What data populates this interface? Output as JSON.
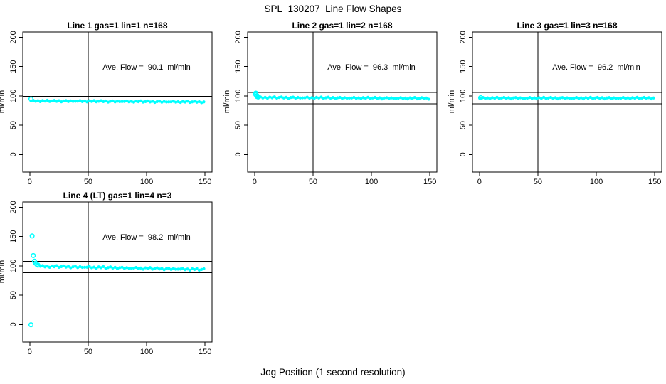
{
  "page": {
    "title": "SPL_130207  Line Flow Shapes",
    "xlabel": "Jog Position (1 second resolution)"
  },
  "colors": {
    "points": "#00ffff",
    "axis": "#000000",
    "background": "#ffffff"
  },
  "chart_data": [
    {
      "type": "scatter",
      "title": "Line 1 gas=1 lin=1 n=168",
      "annotation": "Ave. Flow =  90.1  ml/min",
      "ave_flow_ml_min": 90.1,
      "ylabel": "ml/min",
      "xticks": [
        0,
        50,
        100,
        150
      ],
      "yticks": [
        0,
        50,
        100,
        150,
        200
      ],
      "xlim": [
        -6,
        156
      ],
      "ylim": [
        -30,
        209
      ],
      "hlines": [
        99.1,
        81.1
      ],
      "vline": 50,
      "series": {
        "x_start": 1,
        "x_step": 2,
        "y": [
          91.5,
          92.4,
          90.8,
          91.8,
          90.3,
          92.1,
          91.1,
          92.5,
          90.5,
          91.4,
          92.3,
          90.7,
          91.8,
          90.0,
          91.4,
          92.0,
          90.4,
          91.5,
          90.7,
          90.9,
          91.0,
          91.9,
          90.3,
          91.3,
          89.8,
          91.6,
          90.6,
          92.0,
          89.9,
          90.9,
          91.8,
          90.2,
          91.3,
          89.4,
          90.9,
          91.4,
          89.8,
          91.0,
          90.2,
          90.4,
          90.5,
          91.4,
          89.8,
          90.7,
          89.3,
          91.1,
          90.1,
          91.5,
          89.4,
          90.3,
          91.3,
          89.7,
          90.8,
          88.9,
          90.3,
          90.9,
          89.3,
          90.5,
          89.6,
          89.8,
          89.9,
          90.9,
          89.3,
          90.2,
          88.8,
          90.5,
          89.5,
          91.0,
          88.9,
          89.8,
          90.8,
          89.2,
          90.2,
          88.4,
          89.8
        ]
      },
      "outlier_points": [
        [
          1,
          94.8
        ]
      ]
    },
    {
      "type": "scatter",
      "title": "Line 2 gas=1 lin=2 n=168",
      "annotation": "Ave. Flow =  96.3  ml/min",
      "ave_flow_ml_min": 96.3,
      "ylabel": "ml/min",
      "xticks": [
        0,
        50,
        100,
        150
      ],
      "yticks": [
        0,
        50,
        100,
        150,
        200
      ],
      "xlim": [
        -6,
        156
      ],
      "ylim": [
        -30,
        209
      ],
      "hlines": [
        105.9,
        86.7
      ],
      "vline": 50,
      "series": {
        "x_start": 3,
        "x_step": 2,
        "y": [
          97.2,
          98.2,
          96.5,
          97.5,
          96.0,
          97.9,
          96.8,
          98.4,
          96.1,
          97.2,
          98.2,
          96.5,
          97.6,
          95.6,
          97.2,
          97.8,
          96.1,
          97.4,
          96.5,
          96.7,
          96.8,
          97.8,
          96.1,
          97.1,
          95.6,
          97.5,
          96.4,
          98.0,
          95.7,
          96.8,
          97.8,
          96.1,
          97.2,
          95.2,
          96.8,
          97.4,
          95.7,
          97.0,
          96.1,
          96.3,
          96.4,
          97.4,
          95.7,
          96.7,
          95.2,
          97.1,
          96.0,
          97.6,
          95.3,
          96.4,
          97.4,
          95.7,
          96.8,
          94.8,
          96.4,
          97.0,
          95.3,
          96.6,
          95.7,
          95.9,
          96.0,
          97.0,
          95.3,
          96.3,
          94.8,
          96.7,
          95.6,
          97.2,
          94.9,
          96.0,
          97.0,
          95.3,
          96.4,
          94.4
        ]
      },
      "outlier_points": [
        [
          1,
          104.6
        ],
        [
          1,
          102.2
        ],
        [
          2,
          100.4
        ],
        [
          2,
          98.9
        ],
        [
          3,
          98.1
        ]
      ]
    },
    {
      "type": "scatter",
      "title": "Line 3 gas=1 lin=3 n=168",
      "annotation": "Ave. Flow =  96.2  ml/min",
      "ave_flow_ml_min": 96.2,
      "ylabel": "ml/min",
      "xticks": [
        0,
        50,
        100,
        150
      ],
      "yticks": [
        0,
        50,
        100,
        150,
        200
      ],
      "xlim": [
        -6,
        156
      ],
      "ylim": [
        -30,
        209
      ],
      "hlines": [
        105.8,
        86.6
      ],
      "vline": 50,
      "series": {
        "x_start": 1,
        "x_step": 2,
        "y": [
          96.2,
          97.2,
          95.6,
          96.6,
          95.0,
          97.0,
          95.9,
          97.5,
          95.3,
          96.3,
          97.4,
          95.7,
          96.9,
          94.9,
          96.5,
          97.1,
          95.4,
          96.7,
          95.8,
          96.1,
          96.2,
          97.2,
          95.6,
          96.6,
          95.0,
          97.0,
          95.9,
          97.5,
          95.3,
          96.3,
          97.4,
          95.7,
          96.9,
          94.9,
          96.5,
          97.1,
          95.4,
          96.7,
          95.8,
          96.1,
          96.2,
          97.2,
          95.6,
          96.6,
          95.0,
          97.0,
          95.9,
          97.5,
          95.3,
          96.3,
          97.4,
          95.7,
          96.9,
          94.9,
          96.5,
          97.1,
          95.4,
          96.7,
          95.8,
          96.1,
          96.2,
          97.2,
          95.6,
          96.6,
          95.0,
          97.0,
          95.9,
          97.5,
          95.3,
          96.3,
          97.4,
          95.7,
          96.9,
          94.9,
          96.5
        ]
      },
      "outlier_points": [
        [
          1,
          96.8
        ]
      ]
    },
    {
      "type": "scatter",
      "title": "Line 4 (LT) gas=1 lin=4 n=3",
      "annotation": "Ave. Flow =  98.2  ml/min",
      "ave_flow_ml_min": 98.2,
      "ylabel": "ml/min",
      "xticks": [
        0,
        50,
        100,
        150
      ],
      "yticks": [
        0,
        50,
        100,
        150,
        200
      ],
      "xlim": [
        -6,
        156
      ],
      "ylim": [
        -30,
        209
      ],
      "hlines": [
        108.0,
        88.4
      ],
      "vline": 50,
      "series": {
        "x_start": 9,
        "x_step": 2,
        "y": [
          99.3,
          100.5,
          98.3,
          99.5,
          97.5,
          99.9,
          98.5,
          100.3,
          97.5,
          98.7,
          99.9,
          97.8,
          99.1,
          96.7,
          98.5,
          99.2,
          97.1,
          98.6,
          97.4,
          97.6,
          97.7,
          98.9,
          96.7,
          97.9,
          95.9,
          98.3,
          96.9,
          98.7,
          95.9,
          97.1,
          98.3,
          96.2,
          97.5,
          95.1,
          96.9,
          97.6,
          95.5,
          97.0,
          95.8,
          96.0,
          96.1,
          97.3,
          95.1,
          96.3,
          94.3,
          96.7,
          95.3,
          97.1,
          94.3,
          95.5,
          96.7,
          94.6,
          95.9,
          93.5,
          95.3,
          96.0,
          93.9,
          95.4,
          94.2,
          94.4,
          94.5,
          95.7,
          93.5,
          94.7,
          92.7,
          95.1,
          93.7,
          95.5,
          92.7,
          93.9,
          95.1
        ]
      },
      "outlier_points": [
        [
          1,
          -0.5
        ],
        [
          2,
          151
        ],
        [
          3,
          117.5
        ],
        [
          4,
          108
        ],
        [
          5,
          104.5
        ],
        [
          6,
          102.6
        ],
        [
          7,
          101.2
        ]
      ]
    }
  ]
}
